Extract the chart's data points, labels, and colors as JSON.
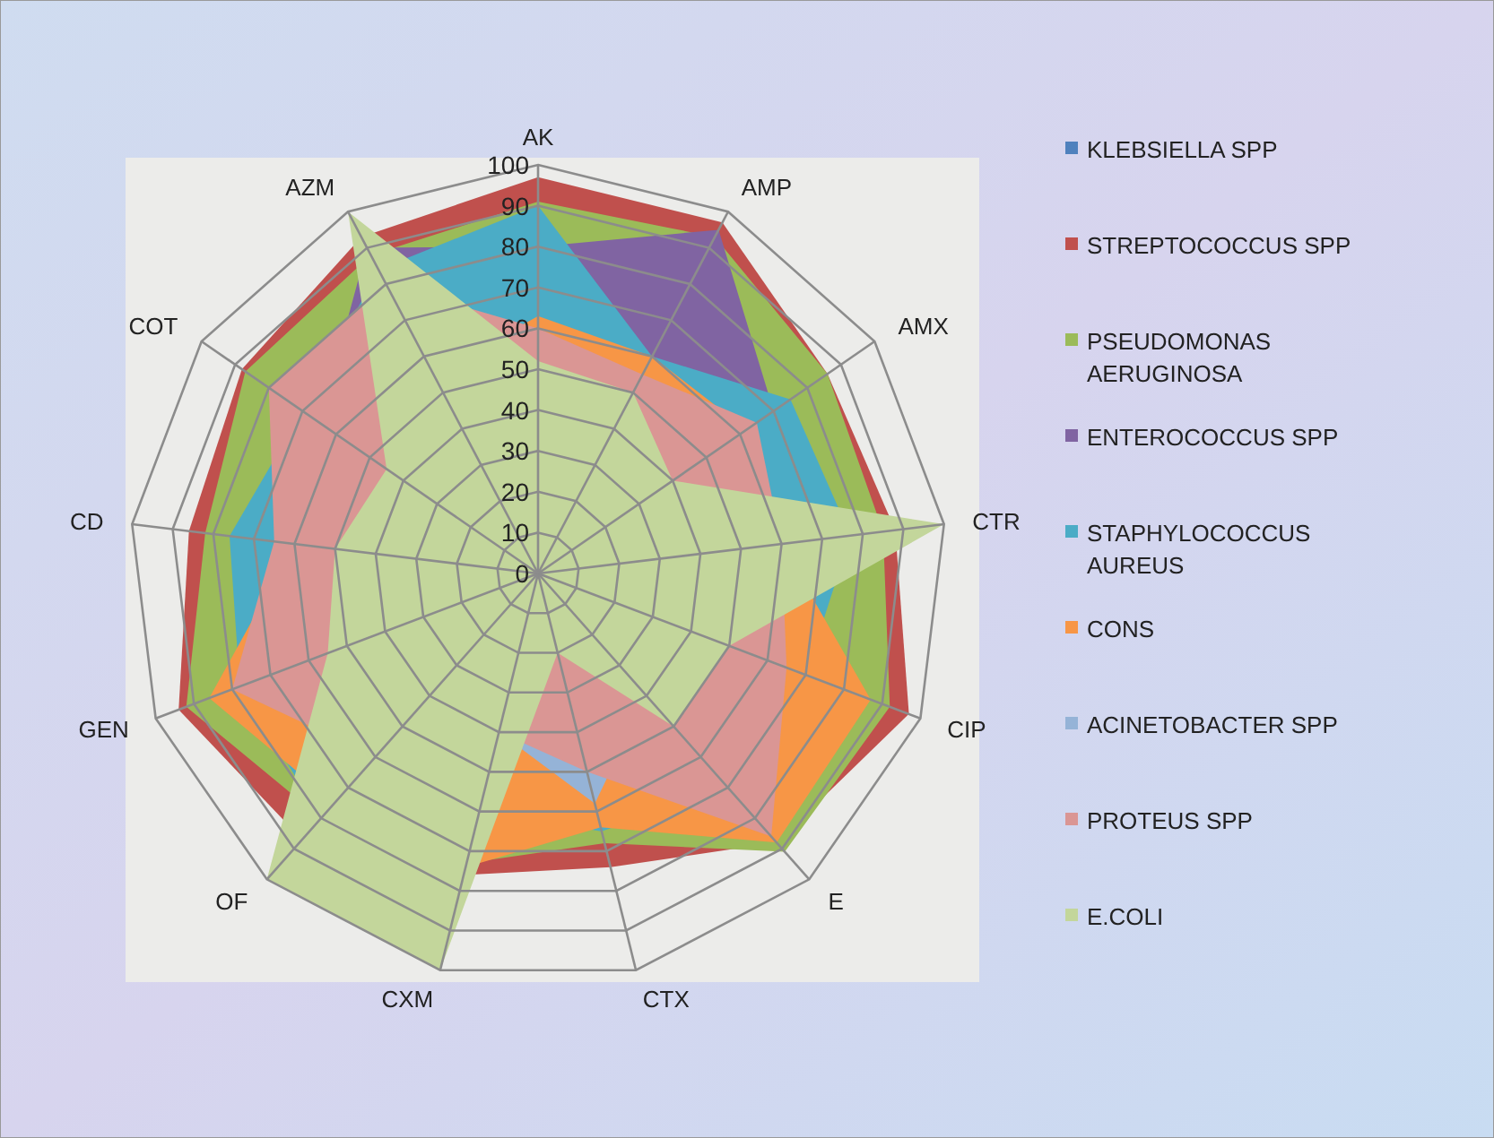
{
  "chart_data": {
    "type": "radar",
    "categories": [
      "AK",
      "AMP",
      "AMX",
      "CTR",
      "CIP",
      "E",
      "CTX",
      "CXM",
      "OF",
      "GEN",
      "CD",
      "COT",
      "AZM"
    ],
    "ylim": [
      0,
      100
    ],
    "yticks": [
      0,
      10,
      20,
      30,
      40,
      50,
      60,
      70,
      80,
      90,
      100
    ],
    "grid": true,
    "legend": "right",
    "series": [
      {
        "name": "KLEBSIELLA SPP",
        "color": "#4f81bd",
        "values": [
          85,
          85,
          80,
          86,
          85,
          80,
          60,
          65,
          75,
          80,
          70,
          75,
          80
        ]
      },
      {
        "name": "STREPTOCOCCUS SPP",
        "color": "#c0504d",
        "values": [
          97,
          97,
          86,
          88,
          97,
          88,
          74,
          76,
          87,
          94,
          86,
          88,
          93
        ]
      },
      {
        "name": "PSEUDOMONAS AERUGINOSA",
        "color": "#9bbb59",
        "values": [
          91,
          93,
          86,
          85,
          92,
          91,
          68,
          73,
          80,
          92,
          82,
          87,
          88
        ]
      },
      {
        "name": "ENTEROCOCCUS SPP",
        "color": "#8064a2",
        "values": [
          80,
          95,
          70,
          60,
          60,
          55,
          40,
          45,
          55,
          60,
          60,
          65,
          90
        ]
      },
      {
        "name": "STAPHYLOCOCCUS AUREUS",
        "color": "#4bacc6",
        "values": [
          90,
          60,
          75,
          77,
          70,
          70,
          65,
          60,
          80,
          78,
          76,
          70,
          84
        ]
      },
      {
        "name": "CONS",
        "color": "#f79646",
        "values": [
          63,
          60,
          62,
          60,
          87,
          88,
          64,
          74,
          75,
          86,
          60,
          55,
          55
        ]
      },
      {
        "name": "ACINETOBACTER SPP",
        "color": "#95b3d7",
        "values": [
          40,
          40,
          40,
          40,
          40,
          40,
          58,
          40,
          40,
          40,
          40,
          40,
          40
        ]
      },
      {
        "name": "PROTEUS SPP",
        "color": "#da9694",
        "values": [
          60,
          55,
          65,
          60,
          65,
          86,
          50,
          40,
          60,
          80,
          65,
          80,
          80
        ]
      },
      {
        "name": "E.COLI",
        "color": "#c3d69b",
        "values": [
          52,
          50,
          40,
          100,
          50,
          50,
          20,
          100,
          100,
          55,
          50,
          45,
          100
        ]
      }
    ]
  }
}
